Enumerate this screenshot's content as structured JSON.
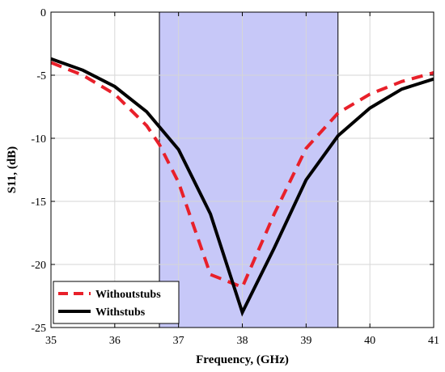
{
  "chart_data": {
    "type": "line",
    "title": "",
    "xlabel": "Frequency, (GHz)",
    "ylabel": "S11, (dB)",
    "xlim": [
      35,
      41
    ],
    "ylim": [
      -25,
      0
    ],
    "xticks": [
      35,
      36,
      37,
      38,
      39,
      40,
      41
    ],
    "yticks": [
      0,
      -5,
      -10,
      -15,
      -20,
      -25
    ],
    "xtick_labels": [
      "35",
      "36",
      "37",
      "38",
      "39",
      "40",
      "41"
    ],
    "ytick_labels": [
      "0",
      "-5",
      "-10",
      "-15",
      "-20",
      "-25"
    ],
    "grid": true,
    "legend_position": "bottom-left",
    "shaded_band": {
      "x_start": 36.7,
      "x_end": 39.5,
      "color": "#c7c8f8"
    },
    "series": [
      {
        "name": "Withoutstubs",
        "style": "dashed",
        "color": "#e8202a",
        "x": [
          35,
          35.5,
          36,
          36.5,
          36.7,
          37,
          37.5,
          38,
          38.5,
          39,
          39.5,
          40,
          40.5,
          41
        ],
        "y": [
          -4.0,
          -5.0,
          -6.5,
          -9.0,
          -10.5,
          -13.5,
          -20.8,
          -21.8,
          -16.0,
          -10.8,
          -8.0,
          -6.5,
          -5.5,
          -4.8
        ]
      },
      {
        "name": "Withstubs",
        "style": "solid",
        "color": "#000000",
        "x": [
          35,
          35.5,
          36,
          36.5,
          37,
          37.5,
          38,
          38.5,
          39,
          39.5,
          40,
          40.5,
          41
        ],
        "y": [
          -3.7,
          -4.6,
          -5.9,
          -7.9,
          -10.9,
          -16.0,
          -23.8,
          -18.7,
          -13.3,
          -9.8,
          -7.6,
          -6.1,
          -5.3
        ]
      }
    ]
  }
}
